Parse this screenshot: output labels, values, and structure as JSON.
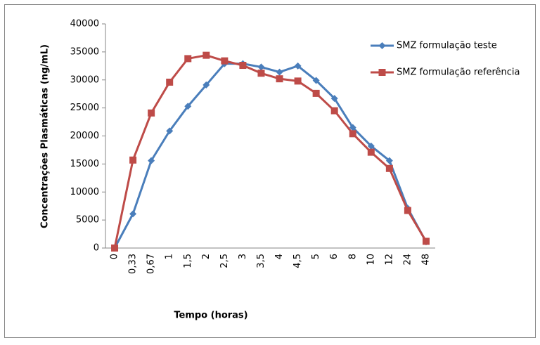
{
  "chart_data": {
    "type": "line",
    "x_label": "Tempo (horas)",
    "y_label": "Concentrações Plasmáticas (ng/mL)",
    "categories": [
      "0",
      "0,33",
      "0,67",
      "1",
      "1,5",
      "2",
      "2,5",
      "3",
      "3,5",
      "4",
      "4,5",
      "5",
      "6",
      "8",
      "10",
      "12",
      "24",
      "48"
    ],
    "series": [
      {
        "name": "SMZ formulação teste",
        "color": "#4a7ebb",
        "marker": "diamond",
        "values": [
          0,
          6100,
          15600,
          20900,
          25300,
          29100,
          32900,
          32900,
          32300,
          31400,
          32500,
          29900,
          26700,
          21500,
          18200,
          15600,
          7100,
          1100
        ]
      },
      {
        "name": "SMZ formulação referência",
        "color": "#be4b48",
        "marker": "square",
        "values": [
          0,
          15700,
          24100,
          29600,
          33800,
          34400,
          33400,
          32600,
          31200,
          30200,
          29800,
          27600,
          24500,
          20400,
          17100,
          14200,
          6700,
          1200
        ]
      }
    ],
    "ylim": [
      0,
      40000
    ],
    "yticks": [
      0,
      5000,
      10000,
      15000,
      20000,
      25000,
      30000,
      35000,
      40000
    ],
    "grid": false,
    "legend": "right"
  }
}
